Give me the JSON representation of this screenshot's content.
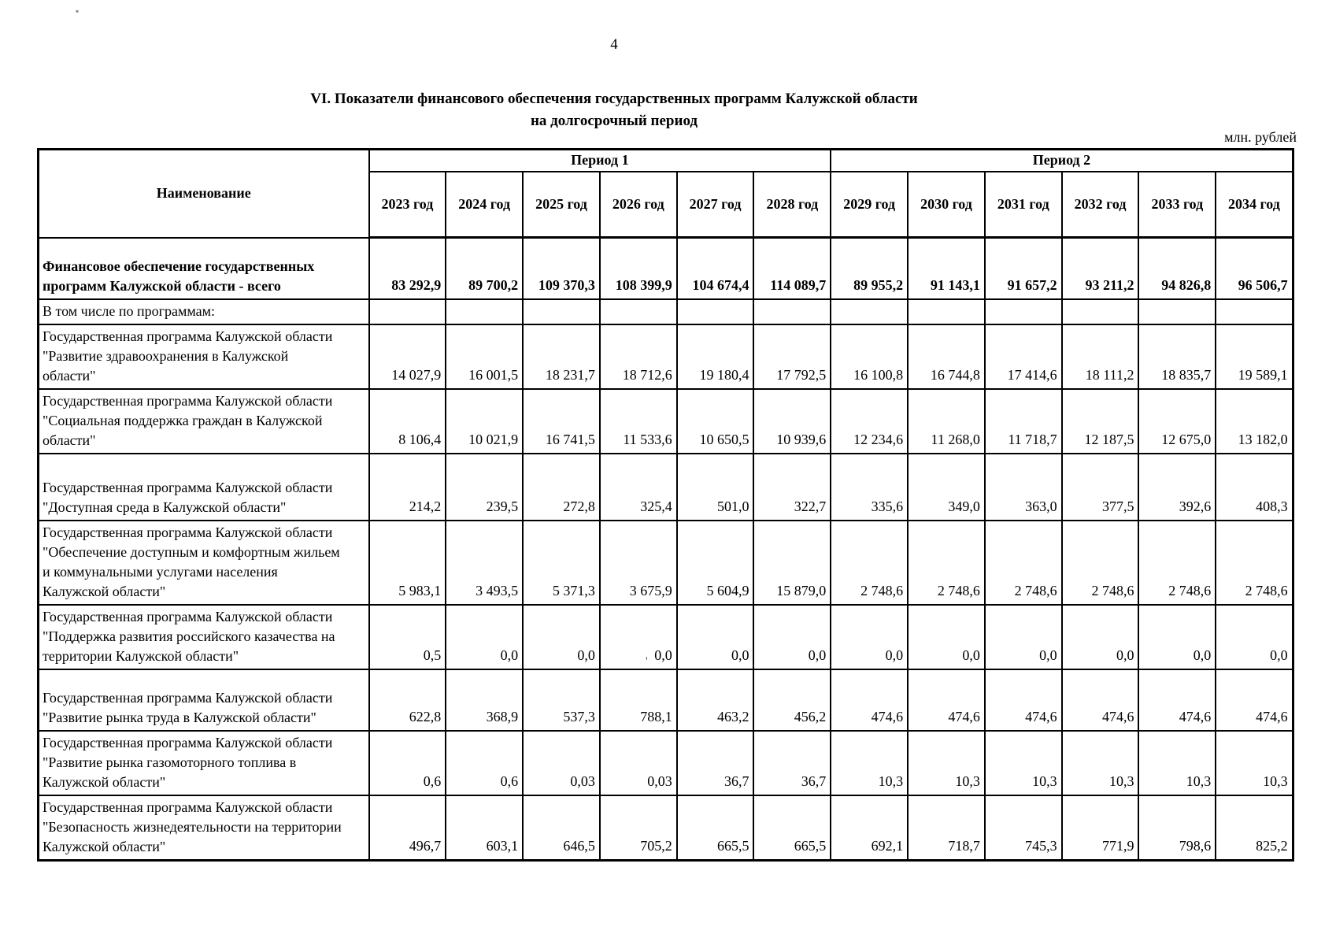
{
  "page": {
    "number": "4",
    "unit_label": "млн. рублей"
  },
  "title": {
    "line1": "VI. Показатели финансового обеспечения государственных программ Калужской области",
    "line2": "на долгосрочный период"
  },
  "table": {
    "name_header": "Наименование",
    "period1_label": "Период 1",
    "period2_label": "Период 2",
    "year_headers": [
      "2023 год",
      "2024 год",
      "2025 год",
      "2026 год",
      "2027 год",
      "2028 год",
      "2029 год",
      "2030 год",
      "2031 год",
      "2032 год",
      "2033 год",
      "2034 год"
    ],
    "rows": [
      {
        "name": "Финансовое обеспечение государственных программ Калужской области - всего",
        "bold": true,
        "values": [
          "83 292,9",
          "89 700,2",
          "109 370,3",
          "108 399,9",
          "104 674,4",
          "114 089,7",
          "89 955,2",
          "91 143,1",
          "91 657,2",
          "93 211,2",
          "94 826,8",
          "96 506,7"
        ]
      },
      {
        "name": "В том числе по программам:",
        "bold": false,
        "values": [
          "",
          "",
          "",
          "",
          "",
          "",
          "",
          "",
          "",
          "",
          "",
          ""
        ]
      },
      {
        "name": "Государственная программа Калужской области \"Развитие здравоохранения в Калужской области\"",
        "bold": false,
        "values": [
          "14 027,9",
          "16 001,5",
          "18 231,7",
          "18 712,6",
          "19 180,4",
          "17 792,5",
          "16 100,8",
          "16 744,8",
          "17 414,6",
          "18 111,2",
          "18 835,7",
          "19 589,1"
        ]
      },
      {
        "name": "Государственная программа Калужской области \"Социальная поддержка граждан в Калужской области\"",
        "bold": false,
        "values": [
          "8 106,4",
          "10 021,9",
          "16 741,5",
          "11 533,6",
          "10 650,5",
          "10 939,6",
          "12 234,6",
          "11 268,0",
          "11 718,7",
          "12 187,5",
          "12 675,0",
          "13 182,0"
        ]
      },
      {
        "name": "Государственная программа Калужской области \"Доступная среда в Калужской области\"",
        "bold": false,
        "values": [
          "214,2",
          "239,5",
          "272,8",
          "325,4",
          "501,0",
          "322,7",
          "335,6",
          "349,0",
          "363,0",
          "377,5",
          "392,6",
          "408,3"
        ]
      },
      {
        "name": "Государственная программа Калужской области \"Обеспечение доступным и комфортным жильем и коммунальными услугами населения Калужской области\"",
        "bold": false,
        "values": [
          "5 983,1",
          "3 493,5",
          "5 371,3",
          "3 675,9",
          "5 604,9",
          "15 879,0",
          "2 748,6",
          "2 748,6",
          "2 748,6",
          "2 748,6",
          "2 748,6",
          "2 748,6"
        ]
      },
      {
        "name": "Государственная программа Калужской области \"Поддержка развития российского казачества на территории Калужской области\"",
        "bold": false,
        "values": [
          "0,5",
          "0,0",
          "0,0",
          "0,0",
          "0,0",
          "0,0",
          "0,0",
          "0,0",
          "0,0",
          "0,0",
          "0,0",
          "0,0"
        ]
      },
      {
        "name": "Государственная программа Калужской области \"Развитие рынка труда в Калужской области\"",
        "bold": false,
        "values": [
          "622,8",
          "368,9",
          "537,3",
          "788,1",
          "463,2",
          "456,2",
          "474,6",
          "474,6",
          "474,6",
          "474,6",
          "474,6",
          "474,6"
        ]
      },
      {
        "name": "Государственная программа Калужской области \"Развитие рынка газомоторного топлива в Калужской области\"",
        "bold": false,
        "values": [
          "0,6",
          "0,6",
          "0,03",
          "0,03",
          "36,7",
          "36,7",
          "10,3",
          "10,3",
          "10,3",
          "10,3",
          "10,3",
          "10,3"
        ]
      },
      {
        "name": "Государственная программа Калужской области \"Безопасность жизнедеятельности на территории Калужской области\"",
        "bold": false,
        "values": [
          "496,7",
          "603,1",
          "646,5",
          "705,2",
          "665,5",
          "665,5",
          "692,1",
          "718,7",
          "745,3",
          "771,9",
          "798,6",
          "825,2"
        ]
      }
    ]
  }
}
